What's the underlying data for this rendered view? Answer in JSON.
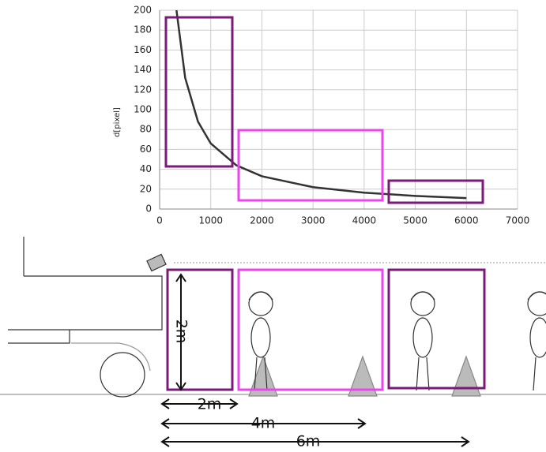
{
  "chart_data": {
    "type": "line",
    "ylabel": "d[pixel]",
    "x": [
      330,
      500,
      750,
      1000,
      1500,
      2000,
      3000,
      4000,
      5000,
      6000
    ],
    "series": [
      {
        "color": "#333333",
        "values": [
          200,
          132,
          88,
          66,
          44,
          33,
          22,
          16.5,
          13.2,
          11
        ]
      }
    ],
    "xlim": [
      0,
      7000
    ],
    "xticks": [
      0,
      1000,
      2000,
      3000,
      4000,
      5000,
      6000,
      7000
    ],
    "ylim": [
      0,
      200
    ],
    "yticks": [
      0,
      20,
      40,
      60,
      80,
      100,
      120,
      140,
      160,
      180,
      200
    ],
    "grid": true
  },
  "diagram": {
    "height_label": "2m",
    "distance_labels": [
      "2m",
      "4m",
      "6m"
    ]
  }
}
